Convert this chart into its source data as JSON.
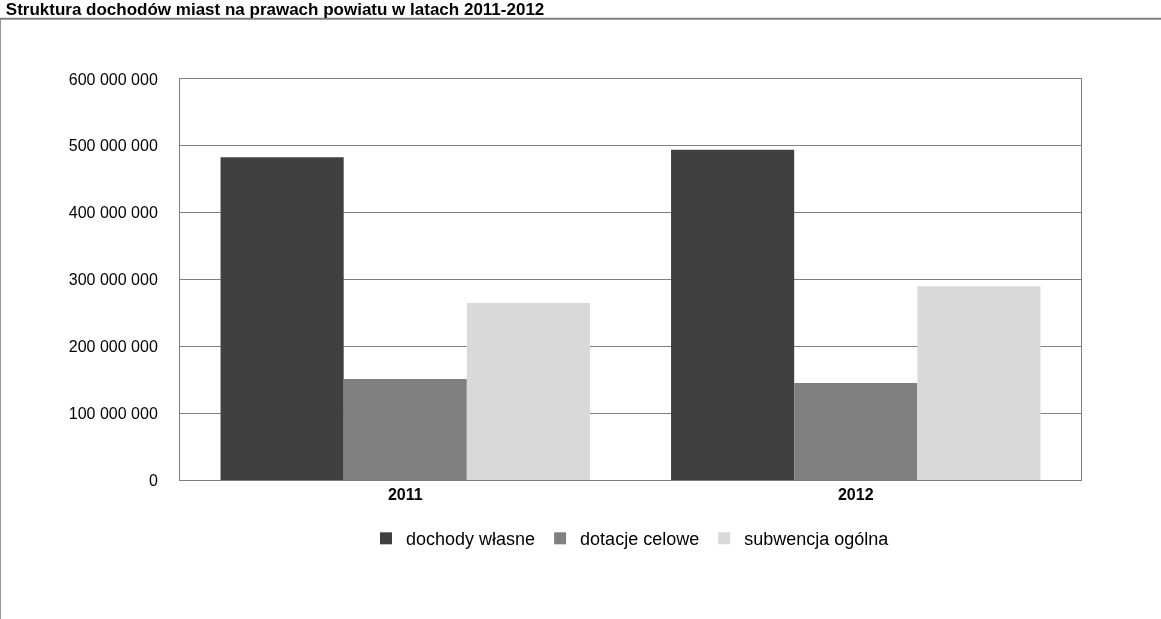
{
  "chart_data": {
    "type": "bar",
    "title": "Struktura dochodów miast na prawach powiatu w latach 2011-2012",
    "categories": [
      "2011",
      "2012"
    ],
    "series": [
      {
        "name": "dochody własne",
        "color": "#404040",
        "values": [
          483000000,
          494000000
        ]
      },
      {
        "name": "dotacje celowe",
        "color": "#808080",
        "values": [
          151000000,
          145000000
        ]
      },
      {
        "name": "subwencja ogólna",
        "color": "#d9d9d9",
        "values": [
          265000000,
          290000000
        ]
      }
    ],
    "ylim": [
      0,
      600000000
    ],
    "yticks": [
      0,
      {
        "value": 100000000,
        "label": "100 000 000"
      },
      {
        "value": 200000000,
        "label": "200 000 000"
      },
      {
        "value": 300000000,
        "label": "300 000 000"
      },
      {
        "value": 400000000,
        "label": "400 000 000"
      },
      {
        "value": 500000000,
        "label": "500 000 000"
      },
      {
        "value": 600000000,
        "label": "600 000 000"
      }
    ],
    "grid": "y",
    "legend": "bottom"
  }
}
